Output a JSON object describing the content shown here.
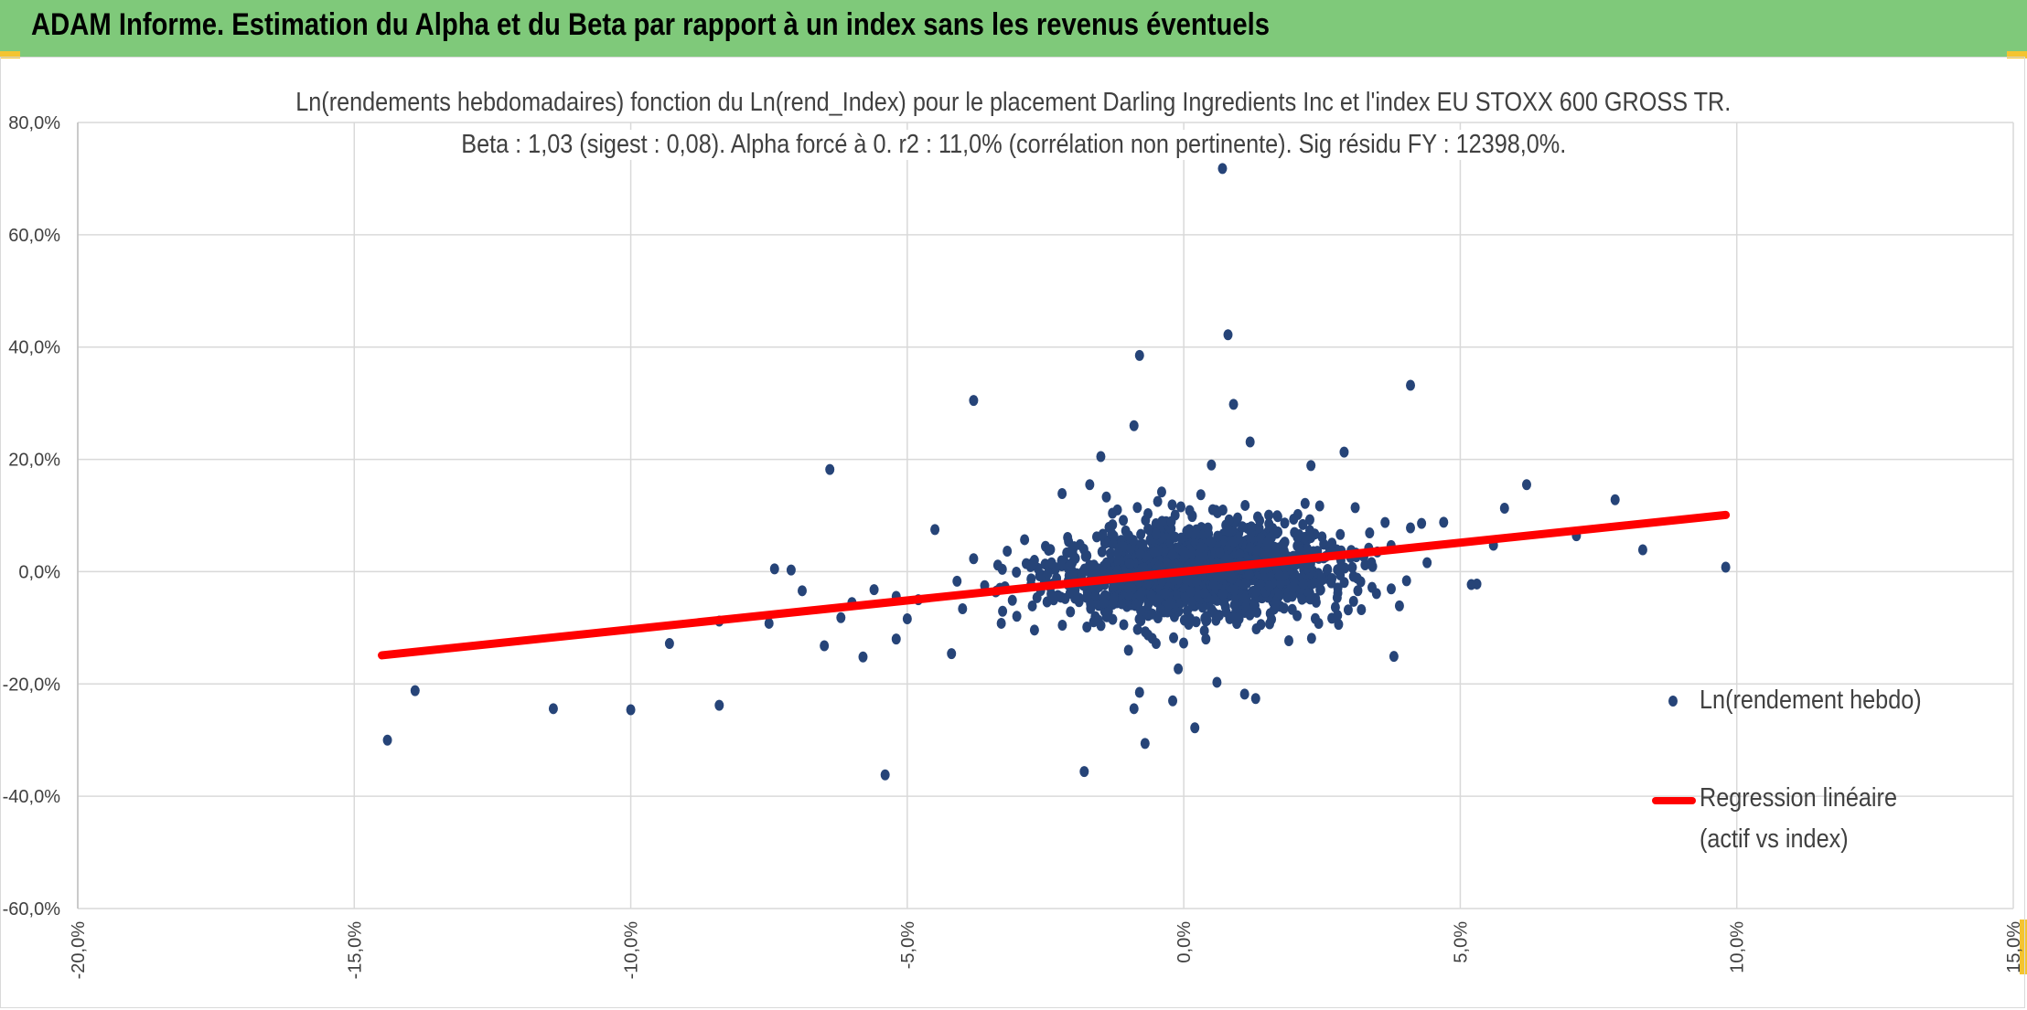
{
  "banner": {
    "title": "ADAM Informe. Estimation du Alpha et du Beta par rapport à un index sans les revenus éventuels",
    "background": "#7fc97a",
    "accent": "#f4c430"
  },
  "chart_data": {
    "type": "scatter",
    "title_line1": "Ln(rendements hebdomadaires) fonction du Ln(rend_Index) pour le placement Darling Ingredients Inc et l'index EU STOXX 600 GROSS TR.",
    "title_line2": "Beta : 1,03 (sigest : 0,08). Alpha forcé à 0. r2 : 11,0% (corrélation non pertinente). Sig résidu FY : 12398,0%.",
    "xlim": [
      -20,
      15
    ],
    "ylim": [
      -60,
      80
    ],
    "x_ticks": [
      "-20,0%",
      "-15,0%",
      "-10,0%",
      "-5,0%",
      "0,0%",
      "5,0%",
      "10,0%",
      "15,0%"
    ],
    "y_ticks": [
      "80,0%",
      "60,0%",
      "40,0%",
      "20,0%",
      "0,0%",
      "-20,0%",
      "-40,0%",
      "-60,0%"
    ],
    "grid": true,
    "legend_position": "right",
    "series": [
      {
        "name": "Ln(rendement hebdo)",
        "kind": "points",
        "color": "#264478",
        "x": [
          -14.4,
          -13.9,
          -11.4,
          -10,
          -9.3,
          -8.4,
          -8.4,
          -7.4,
          -7.5,
          -7.1,
          -6.9,
          -6.5,
          -6.4,
          -6.2,
          -6,
          -5.8,
          -5.6,
          -5.4,
          -5.2,
          -5,
          -4.8,
          -4.5,
          -4.2,
          -4,
          -3.8,
          -3.6,
          -5.2,
          -4.1,
          -3.8,
          -3.4,
          -3.1,
          -2.8,
          -2.5,
          -2.3,
          -2.1,
          -1.9,
          -1.7,
          -1.6,
          -1.5,
          -1.3,
          -1.1,
          -0.9,
          -0.8,
          -0.6,
          -0.5,
          -0.3,
          -0.2,
          0,
          0.2,
          0.3,
          0.5,
          0.6,
          0.8,
          1,
          1.2,
          1.4,
          1.6,
          1.8,
          2.1,
          2.3,
          2.6,
          2.9,
          3.2,
          3.5,
          3.8,
          4.1,
          4.4,
          4.7,
          5.2,
          5.6,
          6.2,
          7.1,
          7.8,
          8.3,
          9.8,
          -1.8,
          -0.8,
          -0.9,
          0.8,
          0.9,
          1.2,
          0.7,
          1.5,
          3.1,
          4.1,
          1.3,
          -0.2,
          0.2,
          0.6,
          -0.7,
          -1.4,
          2.8,
          1.9,
          4.3,
          3.9,
          5.3,
          5.8,
          -2.7,
          -3.3,
          2.2,
          1.7,
          -0.4,
          0.4,
          0.1,
          -0.1,
          1.1,
          -1.2,
          2.5,
          -2.2,
          0.9,
          -1
        ],
        "y": [
          -30,
          -21.2,
          -24.4,
          -24.6,
          -12.8,
          -8.8,
          -23.8,
          0.5,
          -9.2,
          0.3,
          -3.4,
          -13.2,
          18.2,
          -8.2,
          -5.5,
          -15.2,
          -3.2,
          -36.2,
          -12,
          -8.4,
          -5,
          7.5,
          -14.6,
          -6.6,
          30.5,
          -2.5,
          -4.4,
          -1.7,
          2.3,
          -3.6,
          -5.1,
          1.3,
          4.5,
          -1.2,
          6.1,
          -4.8,
          15.5,
          -8,
          20.5,
          0.8,
          -3,
          26,
          38.5,
          7.2,
          -12.8,
          4.1,
          -1.6,
          2.8,
          -6.1,
          0.5,
          19,
          -2.2,
          3.4,
          -8.4,
          5.8,
          1.1,
          -4.5,
          3.1,
          -2.5,
          18.9,
          0.4,
          21.3,
          -1.8,
          3.5,
          -15.1,
          33.2,
          1.6,
          8.8,
          -2.3,
          4.7,
          15.5,
          6.4,
          12.8,
          3.9,
          0.8,
          -35.6,
          -21.5,
          -24.4,
          42.2,
          29.8,
          23.1,
          71.8,
          6.8,
          11.4,
          7.8,
          -22.6,
          -23,
          -27.8,
          -19.7,
          -30.6,
          13.3,
          -9.4,
          -12.3,
          8.6,
          -6.1,
          -2.2,
          11.3,
          -10.4,
          -9.2,
          -4.6,
          9.8,
          14.2,
          -12,
          7.5,
          -17.3,
          -21.8,
          11,
          6.2,
          13.9,
          0.2,
          -14
        ]
      },
      {
        "name": "Regression linéaire (actif vs index)",
        "kind": "line",
        "color": "#ff0000",
        "x": [
          -14.5,
          9.8
        ],
        "y": [
          -14.9,
          10.1
        ]
      }
    ],
    "legend": {
      "point_label": "Ln(rendement hebdo)",
      "line_label_1": "Regression linéaire",
      "line_label_2": "(actif vs index)"
    }
  }
}
